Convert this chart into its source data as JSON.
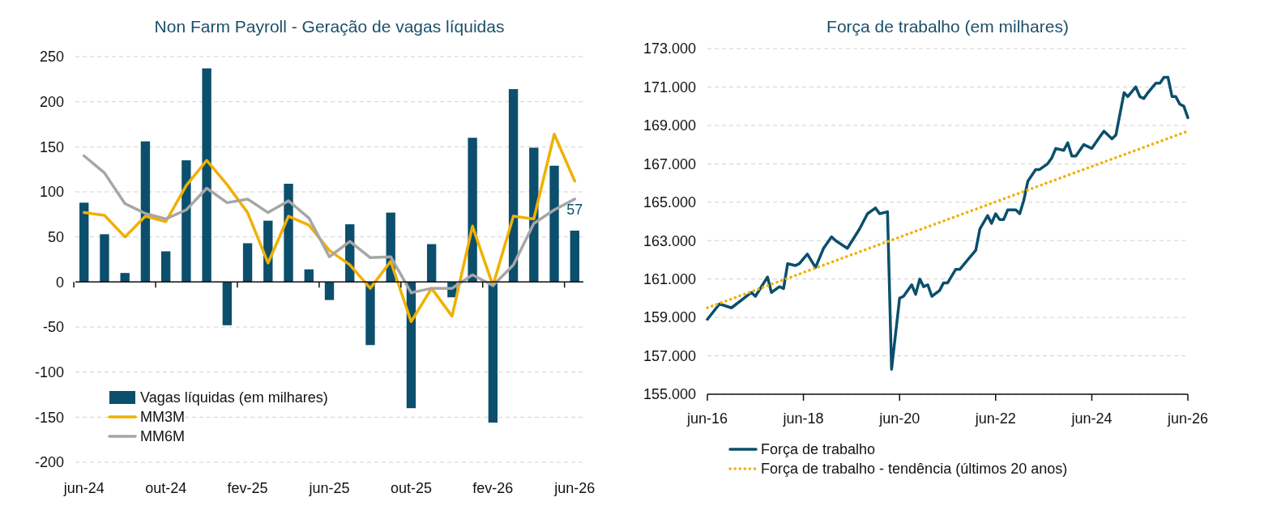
{
  "chart_data": [
    {
      "type": "bar",
      "title": "Non Farm Payroll - Geração de vagas líquidas",
      "categories": [
        "jun-24",
        null,
        null,
        null,
        "out-24",
        null,
        null,
        null,
        "fev-25",
        null,
        null,
        null,
        "jun-25",
        null,
        null,
        null,
        "out-25",
        null,
        null,
        null,
        "fev-26",
        null,
        null,
        null,
        "jun-26"
      ],
      "series": [
        {
          "name": "Vagas líquidas (em milhares)",
          "color": "#0b4f6c",
          "values": [
            88,
            53,
            10,
            156,
            34,
            135,
            237,
            -48,
            43,
            68,
            109,
            14,
            -20,
            64,
            -70,
            77,
            -140,
            42,
            -17,
            160,
            -156,
            214,
            149,
            129,
            57
          ],
          "value_labels": [
            null,
            null,
            null,
            null,
            null,
            null,
            null,
            null,
            null,
            null,
            null,
            null,
            null,
            null,
            null,
            null,
            null,
            null,
            null,
            null,
            null,
            null,
            null,
            null,
            "57"
          ]
        },
        {
          "name": "MM3M",
          "type": "line",
          "color": "#f0b000",
          "values": [
            77,
            74,
            50,
            73,
            67,
            107,
            135,
            108,
            77,
            21,
            73,
            63,
            35,
            19,
            -7,
            23,
            -44,
            -7,
            -38,
            62,
            -4,
            73,
            70,
            164,
            112
          ]
        },
        {
          "name": "MM6M",
          "type": "line",
          "color": "#a6a6a6",
          "values": [
            140,
            121,
            87,
            76,
            70,
            80,
            104,
            88,
            92,
            77,
            90,
            71,
            28,
            45,
            27,
            28,
            -12,
            -7,
            -7,
            8,
            -4,
            19,
            65,
            80,
            92
          ]
        }
      ],
      "ylim": [
        -200,
        250
      ],
      "yticks": [
        -200,
        -150,
        -100,
        -50,
        0,
        50,
        100,
        150,
        200,
        250
      ],
      "grid": "y",
      "legend": "bottom left",
      "line_style": "solid",
      "marker": "none"
    },
    {
      "type": "line",
      "title": "Força de trabalho (em milhares)",
      "series": [
        {
          "name": "Força de trabalho",
          "color": "#0b4f6c",
          "line_style": "solid",
          "x": [
            "2016-06",
            "2016-09",
            "2016-12",
            "2017-05",
            "2017-06",
            "2017-09",
            "2017-10",
            "2017-12",
            "2018-01",
            "2018-02",
            "2018-04",
            "2018-05",
            "2018-07",
            "2018-09",
            "2018-11",
            "2019-01",
            "2019-02",
            "2019-05",
            "2019-08",
            "2019-10",
            "2019-12",
            "2020-01",
            "2020-03",
            "2020-04",
            "2020-06",
            "2020-07",
            "2020-09",
            "2020-10",
            "2020-11",
            "2020-12",
            "2021-01",
            "2021-02",
            "2021-04",
            "2021-05",
            "2021-06",
            "2021-08",
            "2021-09",
            "2021-11",
            "2022-01",
            "2022-02",
            "2022-04",
            "2022-05",
            "2022-06",
            "2022-07",
            "2022-08",
            "2022-09",
            "2022-11",
            "2022-12",
            "2023-01",
            "2023-02",
            "2023-04",
            "2023-05",
            "2023-07",
            "2023-08",
            "2023-09",
            "2023-11",
            "2023-12",
            "2024-01",
            "2024-02",
            "2024-04",
            "2024-06",
            "2024-08",
            "2024-09",
            "2024-11",
            "2024-12",
            "2025-02",
            "2025-03",
            "2025-05",
            "2025-06",
            "2025-07",
            "2025-08",
            "2025-10",
            "2025-11",
            "2025-12",
            "2026-01",
            "2026-02",
            "2026-03",
            "2026-04",
            "2026-05",
            "2026-06"
          ],
          "values": [
            158900,
            159700,
            159500,
            160300,
            160100,
            161100,
            160300,
            160600,
            160500,
            161800,
            161700,
            161800,
            162300,
            161600,
            162600,
            163200,
            163000,
            162600,
            163600,
            164400,
            164700,
            164400,
            164500,
            156300,
            160000,
            160100,
            160700,
            160200,
            161000,
            160600,
            160700,
            160100,
            160400,
            160800,
            160800,
            161500,
            161500,
            162000,
            162500,
            163600,
            164300,
            163900,
            164400,
            164100,
            164100,
            164600,
            164600,
            164400,
            165100,
            166100,
            166700,
            166700,
            167000,
            167300,
            167800,
            167700,
            168100,
            167400,
            167400,
            168000,
            167800,
            168400,
            168700,
            168300,
            168500,
            170700,
            170500,
            171000,
            170500,
            170400,
            170700,
            171200,
            171200,
            171500,
            171500,
            170500,
            170500,
            170100,
            170000,
            169400
          ]
        },
        {
          "name": "Força de trabalho - tendência (últimos 20 anos)",
          "color": "#f0b000",
          "line_style": "dotted",
          "x": [
            "2016-06",
            "2026-06"
          ],
          "values": [
            159500,
            168700
          ]
        }
      ],
      "xlim": [
        "2016-06",
        "2026-06"
      ],
      "xticks": [
        {
          "value": "2016-06",
          "label": "jun-16"
        },
        {
          "value": "2018-06",
          "label": "jun-18"
        },
        {
          "value": "2020-06",
          "label": "jun-20"
        },
        {
          "value": "2022-06",
          "label": "jun-22"
        },
        {
          "value": "2024-06",
          "label": "jun-24"
        },
        {
          "value": "2026-06",
          "label": "jun-26"
        }
      ],
      "ylim": [
        155000,
        173000
      ],
      "yticks": [
        {
          "value": 155000,
          "label": "155.000"
        },
        {
          "value": 157000,
          "label": "157.000"
        },
        {
          "value": 159000,
          "label": "159.000"
        },
        {
          "value": 161000,
          "label": "161.000"
        },
        {
          "value": 163000,
          "label": "163.000"
        },
        {
          "value": 165000,
          "label": "165.000"
        },
        {
          "value": 167000,
          "label": "167.000"
        },
        {
          "value": 169000,
          "label": "169.000"
        },
        {
          "value": 171000,
          "label": "171.000"
        },
        {
          "value": 173000,
          "label": "173.000"
        }
      ],
      "grid": "y",
      "legend": "bottom",
      "marker": "none"
    }
  ]
}
